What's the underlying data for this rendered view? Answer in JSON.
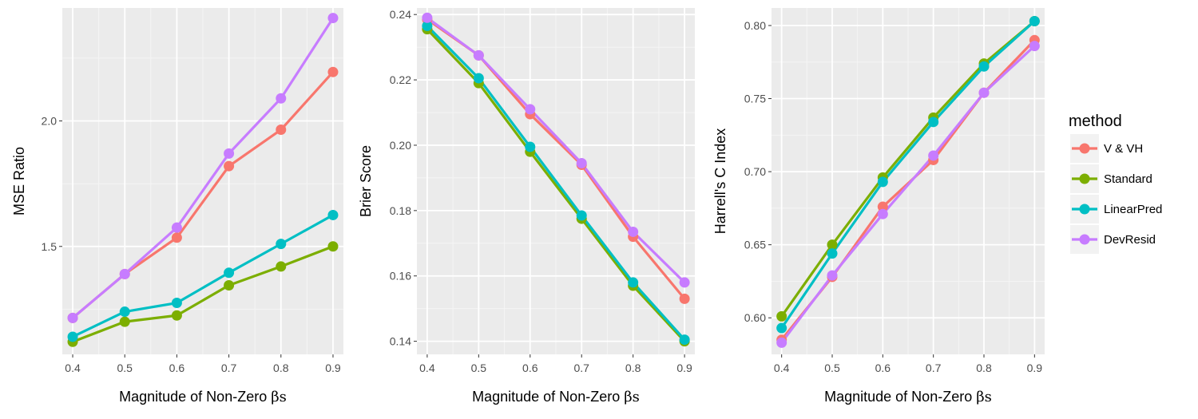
{
  "colors": {
    "panel_bg": "#ebebeb",
    "grid_major": "#ffffff",
    "V & VH": "#f8766d",
    "Standard": "#7cae00",
    "LinearPred": "#00bfc4",
    "DevResid": "#c77cff"
  },
  "legend": {
    "title": "method",
    "entries": [
      "V & VH",
      "Standard",
      "LinearPred",
      "DevResid"
    ]
  },
  "chart_data": [
    {
      "type": "line",
      "xlabel_prefix": "Magnitude of Non-Zero ",
      "xlabel_symbol": "βs",
      "ylabel": "MSE Ratio",
      "x": [
        0.4,
        0.5,
        0.6,
        0.7,
        0.8,
        0.9
      ],
      "xlim": [
        0.38,
        0.92
      ],
      "ylim": [
        1.07,
        2.45
      ],
      "xticks": [
        "0.4",
        "0.5",
        "0.6",
        "0.7",
        "0.8",
        "0.9"
      ],
      "yticks": [
        1.5,
        2.0
      ],
      "ytick_labels": [
        "1.5",
        "2.0"
      ],
      "grid": true,
      "series": [
        {
          "name": "V & VH",
          "values": [
            1.215,
            1.39,
            1.535,
            1.82,
            1.965,
            2.195
          ]
        },
        {
          "name": "Standard",
          "values": [
            1.12,
            1.2,
            1.225,
            1.345,
            1.42,
            1.5
          ]
        },
        {
          "name": "LinearPred",
          "values": [
            1.14,
            1.24,
            1.275,
            1.395,
            1.51,
            1.625
          ]
        },
        {
          "name": "DevResid",
          "values": [
            1.215,
            1.39,
            1.575,
            1.87,
            2.09,
            2.41
          ]
        }
      ]
    },
    {
      "type": "line",
      "xlabel_prefix": "Magnitude of Non-Zero ",
      "xlabel_symbol": "βs",
      "ylabel": "Brier Score",
      "x": [
        0.4,
        0.5,
        0.6,
        0.7,
        0.8,
        0.9
      ],
      "xlim": [
        0.38,
        0.92
      ],
      "ylim": [
        0.136,
        0.242
      ],
      "xticks": [
        "0.4",
        "0.5",
        "0.6",
        "0.7",
        "0.8",
        "0.9"
      ],
      "yticks": [
        0.14,
        0.16,
        0.18,
        0.2,
        0.22,
        0.24
      ],
      "ytick_labels": [
        "0.14",
        "0.16",
        "0.18",
        "0.20",
        "0.22",
        "0.24"
      ],
      "grid": true,
      "series": [
        {
          "name": "V & VH",
          "values": [
            0.2385,
            0.2275,
            0.2095,
            0.194,
            0.172,
            0.153
          ]
        },
        {
          "name": "Standard",
          "values": [
            0.2355,
            0.219,
            0.198,
            0.1775,
            0.157,
            0.14
          ]
        },
        {
          "name": "LinearPred",
          "values": [
            0.2365,
            0.2205,
            0.1995,
            0.1785,
            0.158,
            0.1405
          ]
        },
        {
          "name": "DevResid",
          "values": [
            0.239,
            0.2275,
            0.211,
            0.1945,
            0.1735,
            0.158
          ]
        }
      ]
    },
    {
      "type": "line",
      "xlabel_prefix": "Magnitude of Non-Zero ",
      "xlabel_symbol": "βs",
      "ylabel": "Harrell's C Index",
      "x": [
        0.4,
        0.5,
        0.6,
        0.7,
        0.8,
        0.9
      ],
      "xlim": [
        0.38,
        0.92
      ],
      "ylim": [
        0.575,
        0.812
      ],
      "xticks": [
        "0.4",
        "0.5",
        "0.6",
        "0.7",
        "0.8",
        "0.9"
      ],
      "yticks": [
        0.6,
        0.65,
        0.7,
        0.75,
        0.8
      ],
      "ytick_labels": [
        "0.60",
        "0.65",
        "0.70",
        "0.75",
        "0.80"
      ],
      "grid": true,
      "series": [
        {
          "name": "V & VH",
          "values": [
            0.585,
            0.628,
            0.676,
            0.708,
            0.754,
            0.79
          ]
        },
        {
          "name": "Standard",
          "values": [
            0.601,
            0.65,
            0.696,
            0.737,
            0.774,
            0.803
          ]
        },
        {
          "name": "LinearPred",
          "values": [
            0.593,
            0.644,
            0.693,
            0.734,
            0.772,
            0.803
          ]
        },
        {
          "name": "DevResid",
          "values": [
            0.583,
            0.629,
            0.671,
            0.711,
            0.754,
            0.786
          ]
        }
      ]
    }
  ]
}
